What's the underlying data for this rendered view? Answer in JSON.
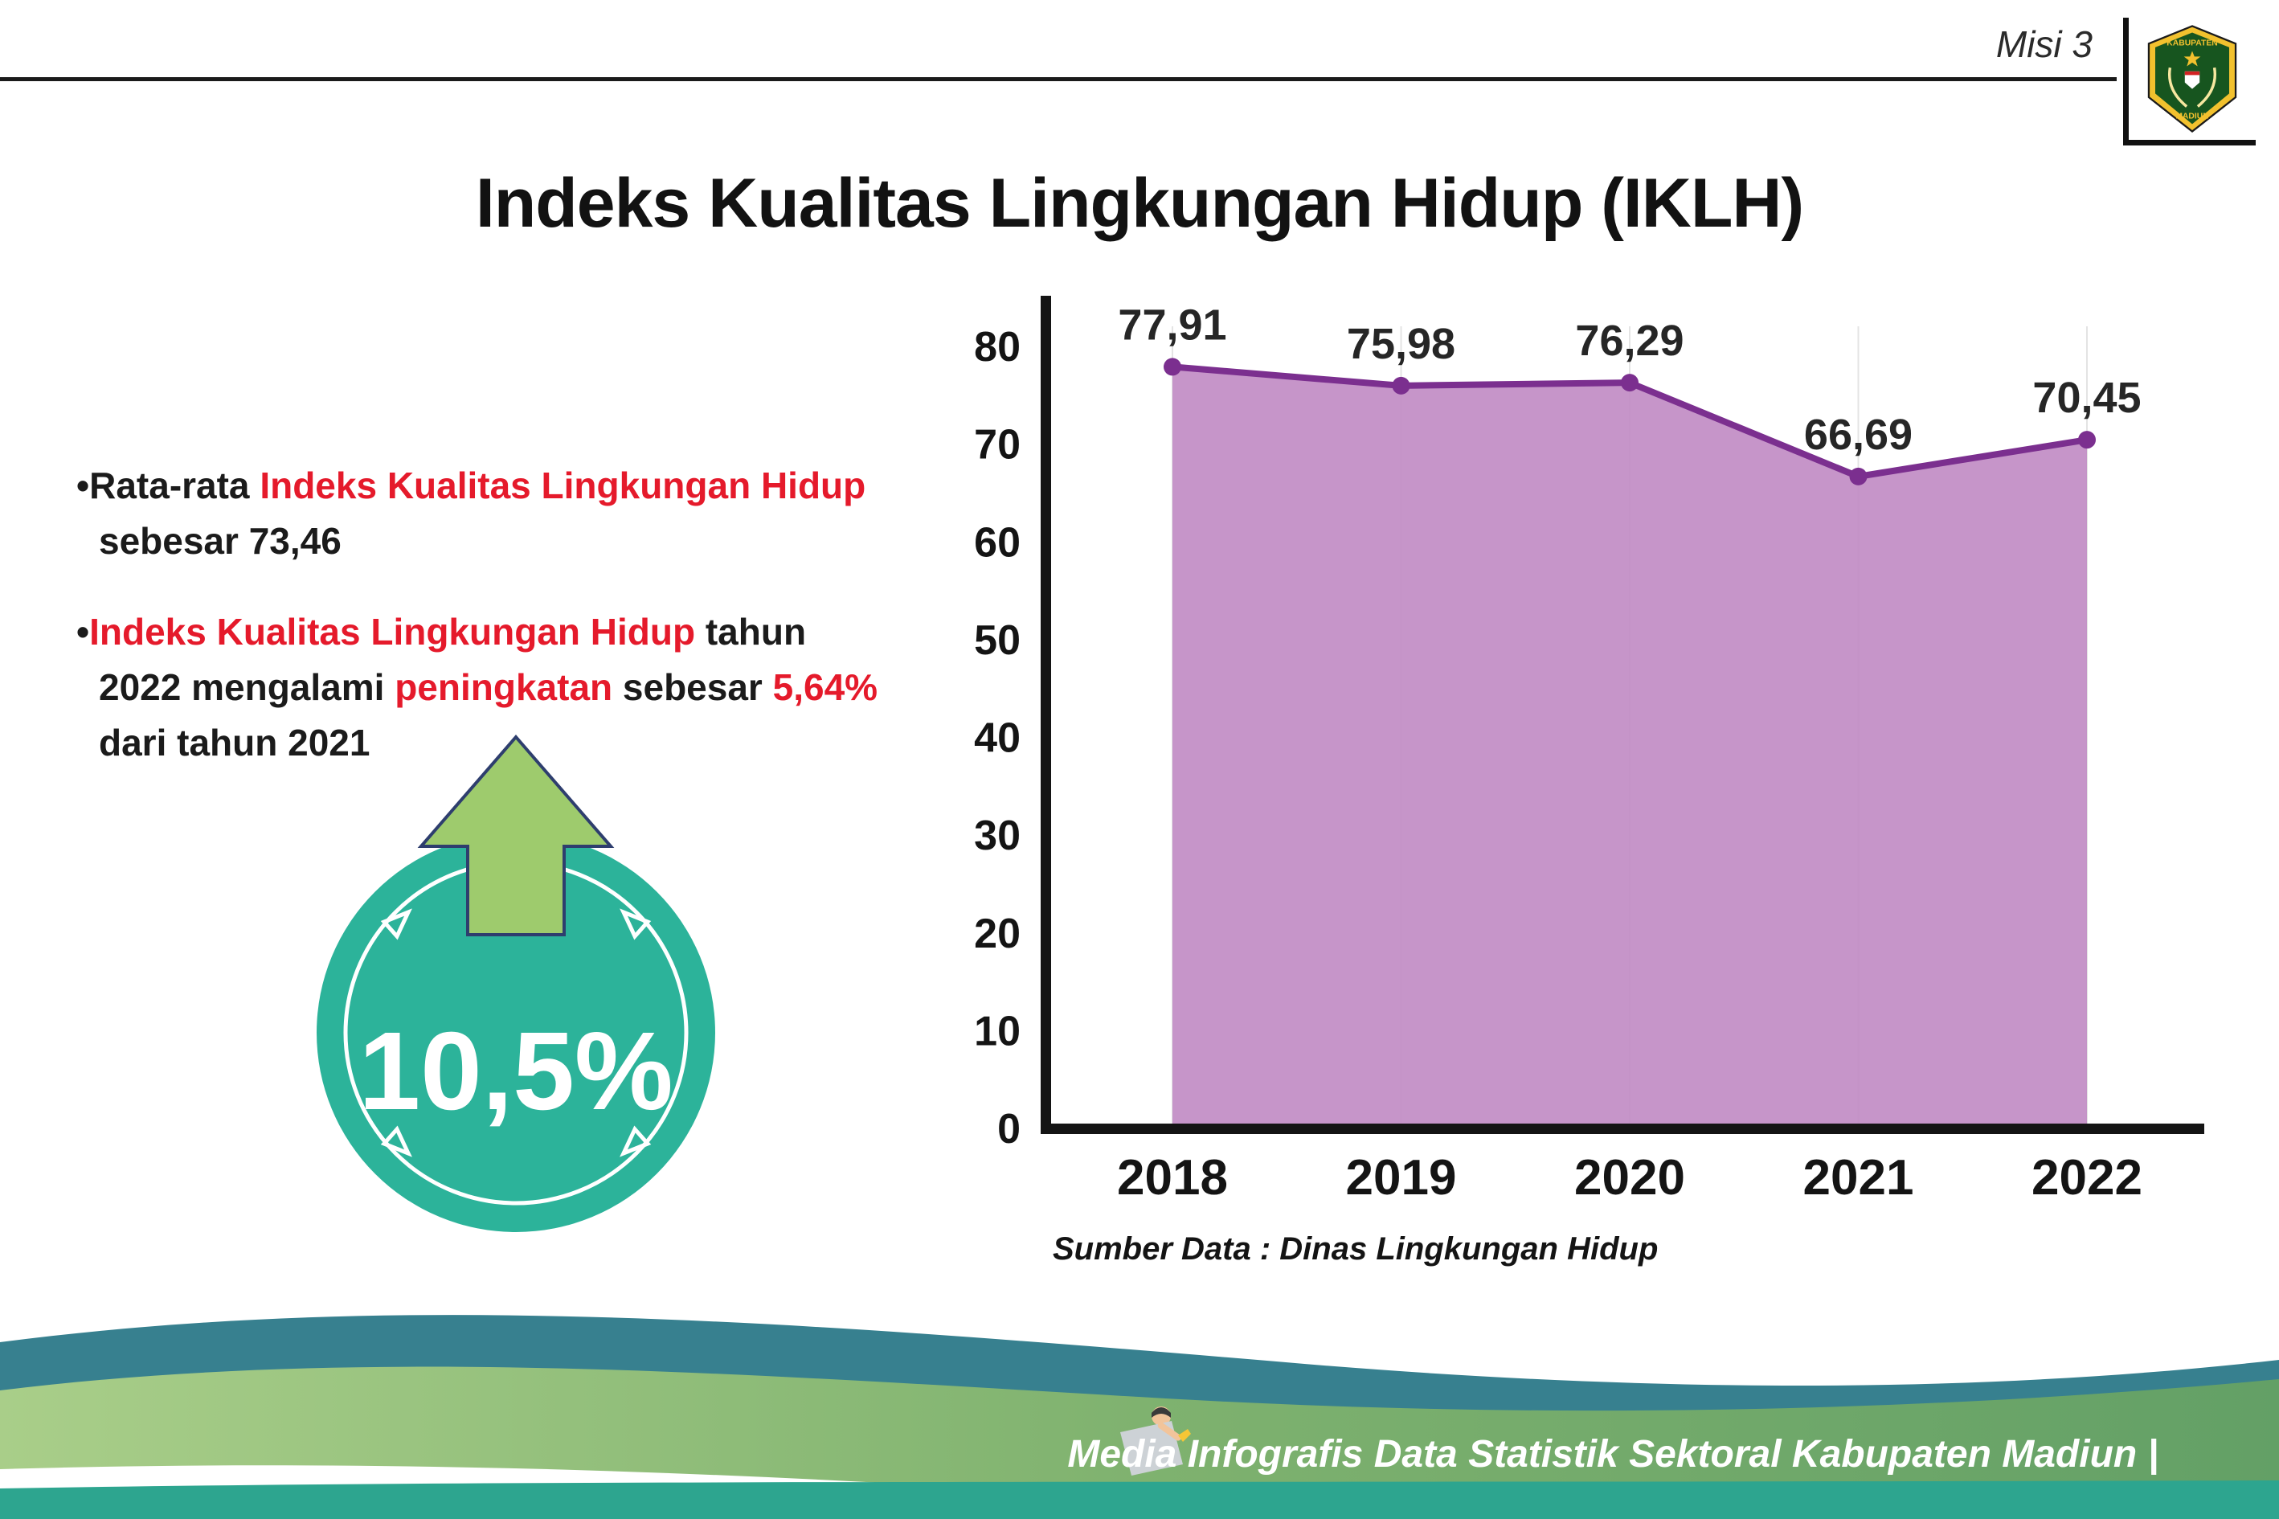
{
  "header": {
    "misi": "Misi 3",
    "title": "Indeks Kualitas Lingkungan Hidup (IKLH)",
    "logo_top": "KABUPATEN",
    "logo_bottom": "MADIUN"
  },
  "bullet_marker": "•",
  "bullets": [
    {
      "segments": [
        {
          "text": "Rata-rata ",
          "color": "dark"
        },
        {
          "text": "Indeks Kualitas Lingkungan Hidup",
          "color": "red"
        },
        {
          "text": " sebesar 73,46",
          "color": "dark"
        }
      ]
    },
    {
      "segments": [
        {
          "text": "Indeks Kualitas Lingkungan Hidup",
          "color": "red"
        },
        {
          "text": " tahun 2022 mengalami ",
          "color": "dark"
        },
        {
          "text": "peningkatan",
          "color": "red"
        },
        {
          "text": " sebesar ",
          "color": "dark"
        },
        {
          "text": "5,64%",
          "color": "red"
        },
        {
          "text": " dari tahun 2021",
          "color": "dark"
        }
      ]
    }
  ],
  "badge": {
    "value": "10,5%"
  },
  "chart_data": {
    "type": "area",
    "title": "Indeks Kualitas Lingkungan Hidup (IKLH)",
    "categories": [
      "2018",
      "2019",
      "2020",
      "2021",
      "2022"
    ],
    "values": [
      77.91,
      75.98,
      76.29,
      66.69,
      70.45
    ],
    "value_labels": [
      "77,91",
      "75,98",
      "76,29",
      "66,69",
      "70,45"
    ],
    "xlabel": "",
    "ylabel": "",
    "ylim": [
      0,
      80
    ],
    "yticks": [
      0,
      10,
      20,
      30,
      40,
      50,
      60,
      70,
      80
    ],
    "grid": "vertical-light",
    "legend": "none",
    "line_color": "#7b2f8f",
    "fill_color": "#c18cc4",
    "axis_color": "#141414",
    "source": "Sumber Data : Dinas Lingkungan Hidup"
  },
  "footer": {
    "credit": "Media Infografis Data Statistik Sektoral Kabupaten Madiun |"
  },
  "colors": {
    "accent_red": "#e51a2b",
    "badge_teal": "#2cb39a",
    "arrow_green": "#9ecb6d",
    "chart_line": "#7b2f8f",
    "chart_fill": "#c18cc4",
    "footer_dark_teal": "#37808f",
    "footer_green": "#7fb26f",
    "footer_strip_teal": "#2da58f"
  }
}
